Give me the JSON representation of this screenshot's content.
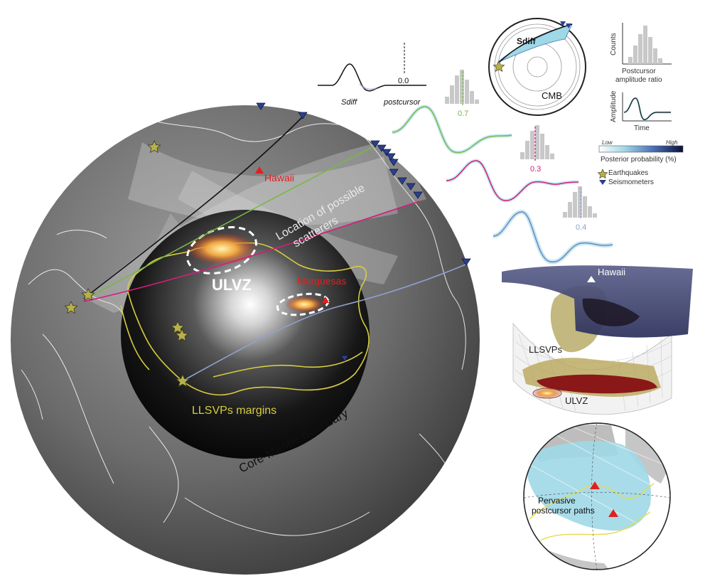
{
  "globe": {
    "labels": {
      "hawaii": "Hawaii",
      "marquesas": "Marquesas",
      "ulvz": "ULVZ",
      "scatterers": [
        "Location of possible",
        "scatterers"
      ],
      "llsvp_margins": "LLSVPs margins",
      "cmb": "Core-Mantle Boundary"
    }
  },
  "waveform": {
    "sdiff_label": "Sdiff",
    "postcursor_label": "postcursor",
    "reference_value": "0.0",
    "paths": [
      {
        "value": "0.7",
        "color": "#7ab648"
      },
      {
        "value": "0.3",
        "color": "#d81b7b"
      },
      {
        "value": "0.4",
        "color": "#8fa0cf"
      }
    ]
  },
  "ray_panel": {
    "phase_label": "Sdiff",
    "cmb_label": "CMB"
  },
  "legend": {
    "hist_ylabel": "Counts",
    "hist_xlabel": [
      "Postcursor",
      "amplitude ratio"
    ],
    "amp_ylabel": "Amplitude",
    "amp_xlabel": "Time",
    "colorbar_low": "Low",
    "colorbar_high": "High",
    "colorbar_title": "Posterior probability (%)",
    "earthquakes": "Earthquakes",
    "seismometers": "Seismometers"
  },
  "model3d": {
    "hawaii": "Hawaii",
    "llsvps": "LLSVPs",
    "ulvz": "ULVZ"
  },
  "map_inset": {
    "label": [
      "Pervasive",
      "postcursor paths"
    ]
  },
  "colors": {
    "star": "#b7b04a",
    "seismometer": "#2b3f8f",
    "hawaii_red": "#e02020",
    "llsvp_yellow": "#d6cc3e",
    "green_path": "#7ab648",
    "pink_path": "#d81b7b",
    "blue_path": "#8fa0cf",
    "path_cyan": "#9fd8e6"
  }
}
